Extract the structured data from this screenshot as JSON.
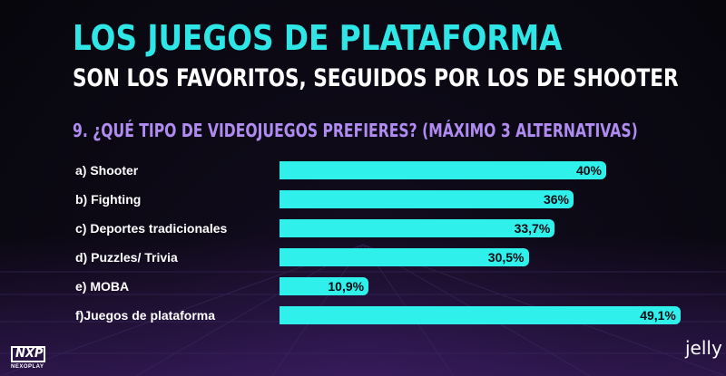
{
  "header": {
    "title": "LOS JUEGOS DE PLATAFORMA",
    "subtitle": "SON LOS FAVORITOS, SEGUIDOS POR LOS DE SHOOTER",
    "question": "9. ¿QUÉ TIPO DE VIDEOJUEGOS PREFIERES? (MÁXIMO 3 ALTERNATIVAS)"
  },
  "chart_data": {
    "type": "bar",
    "orientation": "horizontal",
    "categories": [
      "a) Shooter",
      "b) Fighting",
      "c) Deportes tradicionales",
      "d) Puzzles/ Trivia",
      "e) MOBA",
      "f)Juegos de plataforma"
    ],
    "values": [
      40,
      36,
      33.7,
      30.5,
      10.9,
      49.1
    ],
    "value_labels": [
      "40%",
      "36%",
      "33,7%",
      "30,5%",
      "10,9%",
      "49,1%"
    ],
    "unit": "%",
    "xlim": [
      0,
      50
    ],
    "grid": false,
    "bar_color": "#2ff0ea"
  },
  "logos": {
    "left_top": "NXP",
    "left_bottom": "NEXOPLAY",
    "right": "jelly"
  },
  "colors": {
    "title": "#2fe6e6",
    "question": "#b08cf2",
    "bar": "#2ff0ea"
  }
}
